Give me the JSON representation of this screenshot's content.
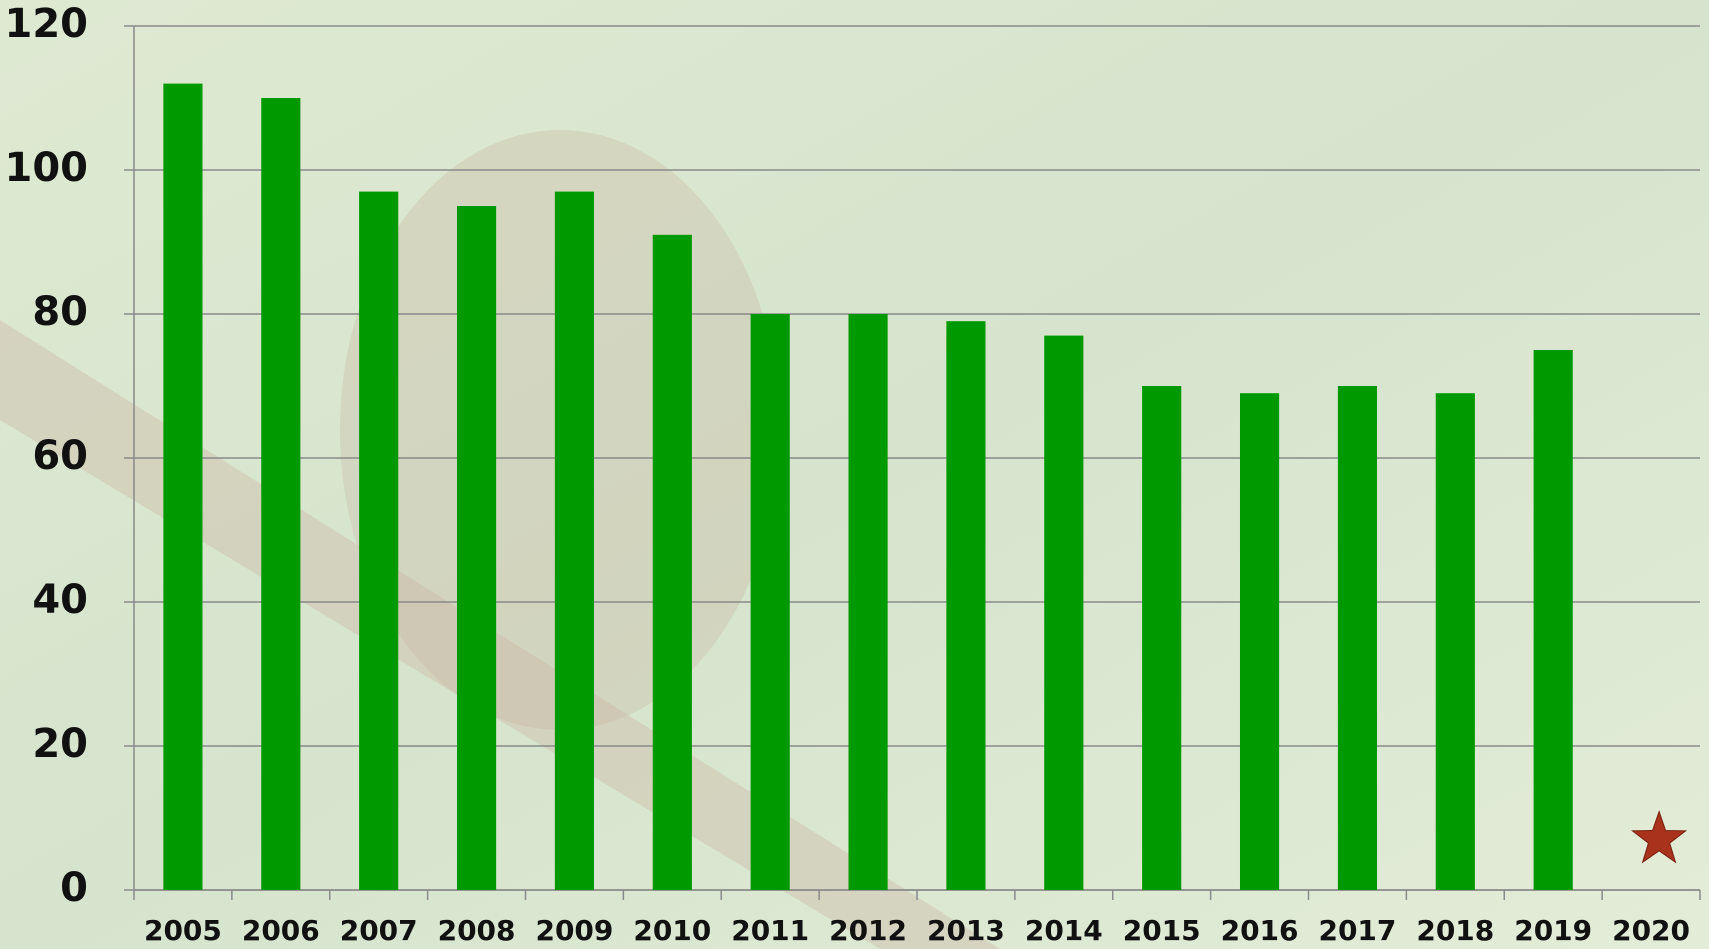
{
  "chart_data": {
    "type": "bar",
    "categories": [
      "2005",
      "2006",
      "2007",
      "2008",
      "2009",
      "2010",
      "2011",
      "2012",
      "2013",
      "2014",
      "2015",
      "2016",
      "2017",
      "2018",
      "2019",
      "2020"
    ],
    "values": [
      112,
      110,
      97,
      95,
      97,
      91,
      80,
      80,
      79,
      77,
      70,
      69,
      70,
      69,
      75,
      null
    ],
    "color": "#009a00",
    "markers": {
      "shape": "star",
      "color": "#a8321c",
      "values": [
        null,
        null,
        null,
        null,
        null,
        null,
        null,
        null,
        null,
        null,
        null,
        null,
        null,
        null,
        null,
        7
      ]
    },
    "ylim": [
      0,
      120
    ],
    "yticks": [
      0,
      20,
      40,
      60,
      80,
      100,
      120
    ],
    "grid": true
  }
}
